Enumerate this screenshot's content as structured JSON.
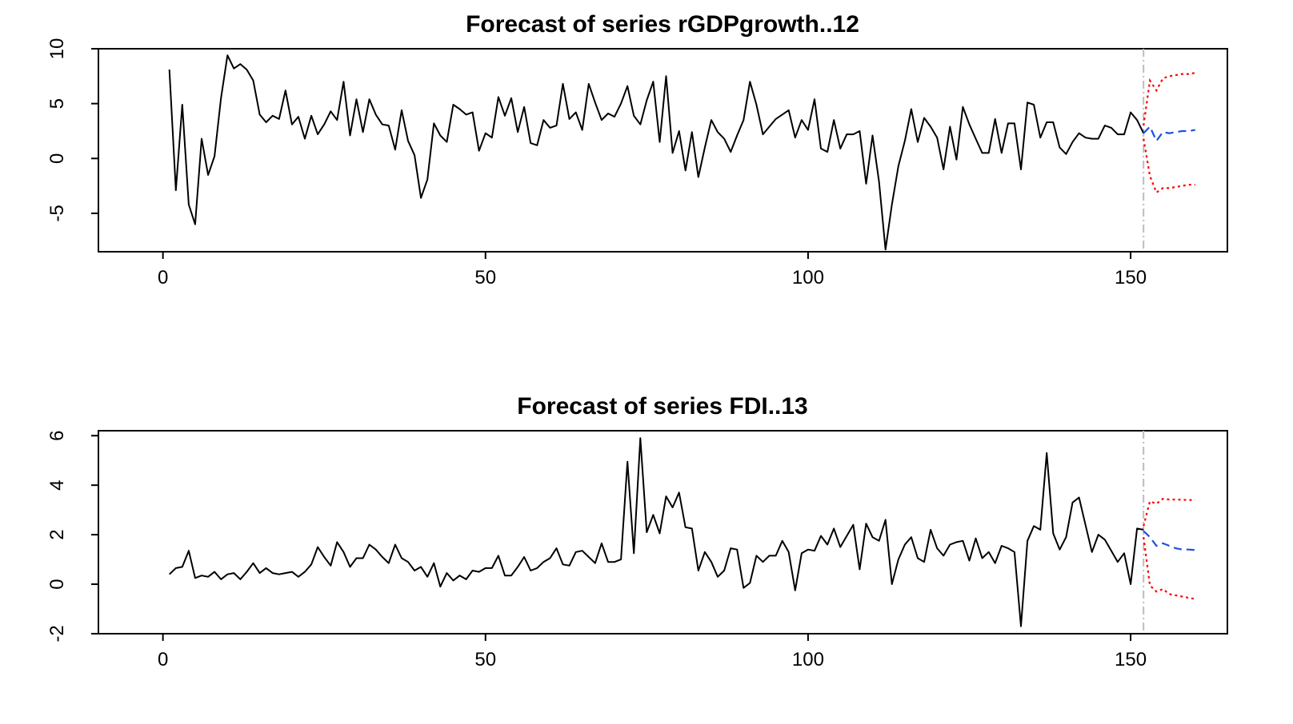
{
  "colors": {
    "history": "#000000",
    "forecast": "#1f4fe0",
    "confidence": "#ff0000",
    "cutoff": "#bdbdbd"
  },
  "chart_data": [
    {
      "type": "line",
      "title": "Forecast of series rGDPgrowth..12",
      "xlabel": "",
      "ylabel": "",
      "xlim": [
        -10,
        165
      ],
      "ylim": [
        -8.5,
        10
      ],
      "xticks": [
        0,
        50,
        100,
        150
      ],
      "xtick_labels": [
        "0",
        "50",
        "100",
        "150"
      ],
      "yticks": [
        -5,
        0,
        5,
        10
      ],
      "ytick_labels": [
        "-5",
        "0",
        "5",
        "10"
      ],
      "grid": false,
      "forecast_start": 152,
      "series": [
        {
          "role": "history",
          "x_start": 1,
          "values": [
            8.1,
            -2.9,
            4.9,
            -4.2,
            -6.0,
            1.8,
            -1.5,
            0.2,
            5.5,
            9.4,
            8.2,
            8.6,
            8.1,
            7.1,
            4.0,
            3.3,
            3.9,
            3.6,
            6.2,
            3.1,
            3.8,
            1.8,
            3.9,
            2.2,
            3.1,
            4.3,
            3.5,
            7.0,
            2.1,
            5.4,
            2.4,
            5.4,
            4.0,
            3.1,
            3.0,
            0.8,
            4.4,
            1.6,
            0.3,
            -3.6,
            -1.9,
            3.2,
            2.1,
            1.5,
            4.9,
            4.5,
            4.0,
            4.2,
            0.7,
            2.3,
            1.9,
            5.6,
            3.9,
            5.5,
            2.4,
            4.7,
            1.4,
            1.2,
            3.5,
            2.8,
            3.0,
            6.8,
            3.6,
            4.2,
            2.6,
            6.8,
            5.1,
            3.5,
            4.1,
            3.8,
            5.0,
            6.6,
            3.9,
            3.1,
            5.3,
            7.0,
            1.5,
            7.5,
            0.5,
            2.5,
            -1.1,
            2.4,
            -1.7,
            1.0,
            3.5,
            2.4,
            1.8,
            0.6,
            2.1,
            3.5,
            7.0,
            4.9,
            2.2,
            2.9,
            3.6,
            4.0,
            4.4,
            1.9,
            3.5,
            2.6,
            5.4,
            0.9,
            0.6,
            3.5,
            0.9,
            2.2,
            2.2,
            2.5,
            -2.3,
            2.1,
            -2.1,
            -8.3,
            -4.2,
            -0.7,
            1.6,
            4.5,
            1.5,
            3.7,
            2.9,
            1.9,
            -1.0,
            2.9,
            -0.1,
            4.7,
            3.1,
            1.8,
            0.5,
            0.5,
            3.6,
            0.5,
            3.2,
            3.2,
            -1.0,
            5.1,
            4.9,
            1.9,
            3.3,
            3.3,
            1.0,
            0.4,
            1.5,
            2.3,
            1.9,
            1.8,
            1.8,
            3.0,
            2.8,
            2.2,
            2.2,
            4.2,
            3.5,
            2.3
          ]
        },
        {
          "role": "forecast",
          "x": [
            152,
            153,
            154,
            155,
            156,
            157,
            158,
            159,
            160
          ],
          "values": [
            2.3,
            2.9,
            1.6,
            2.4,
            2.3,
            2.4,
            2.5,
            2.5,
            2.6
          ]
        },
        {
          "role": "upper",
          "x": [
            152,
            153,
            154,
            155,
            156,
            157,
            158,
            159,
            160
          ],
          "values": [
            3.0,
            7.1,
            6.2,
            7.3,
            7.5,
            7.6,
            7.7,
            7.7,
            7.8
          ]
        },
        {
          "role": "lower",
          "x": [
            152,
            153,
            154,
            155,
            156,
            157,
            158,
            159,
            160
          ],
          "values": [
            1.8,
            -1.6,
            -3.1,
            -2.7,
            -2.7,
            -2.6,
            -2.5,
            -2.4,
            -2.4
          ]
        }
      ]
    },
    {
      "type": "line",
      "title": "Forecast of series FDI..13",
      "xlabel": "",
      "ylabel": "",
      "xlim": [
        -10,
        165
      ],
      "ylim": [
        -2.0,
        6.2
      ],
      "xticks": [
        0,
        50,
        100,
        150
      ],
      "xtick_labels": [
        "0",
        "50",
        "100",
        "150"
      ],
      "yticks": [
        -2,
        0,
        2,
        4,
        6
      ],
      "ytick_labels": [
        "-2",
        "0",
        "2",
        "4",
        "6"
      ],
      "grid": false,
      "forecast_start": 152,
      "series": [
        {
          "role": "history",
          "x_start": 1,
          "values": [
            0.4,
            0.65,
            0.7,
            1.35,
            0.25,
            0.35,
            0.3,
            0.5,
            0.2,
            0.4,
            0.45,
            0.2,
            0.5,
            0.85,
            0.45,
            0.65,
            0.45,
            0.4,
            0.45,
            0.5,
            0.3,
            0.5,
            0.8,
            1.5,
            1.1,
            0.75,
            1.7,
            1.3,
            0.7,
            1.05,
            1.05,
            1.6,
            1.4,
            1.1,
            0.85,
            1.6,
            1.05,
            0.9,
            0.55,
            0.7,
            0.3,
            0.85,
            -0.1,
            0.45,
            0.15,
            0.35,
            0.2,
            0.55,
            0.5,
            0.65,
            0.65,
            1.15,
            0.35,
            0.35,
            0.7,
            1.1,
            0.55,
            0.65,
            0.9,
            1.05,
            1.45,
            0.8,
            0.75,
            1.3,
            1.35,
            1.1,
            0.85,
            1.65,
            0.9,
            0.9,
            1.0,
            4.95,
            1.25,
            5.9,
            2.1,
            2.8,
            2.05,
            3.55,
            3.1,
            3.7,
            2.3,
            2.25,
            0.55,
            1.3,
            0.9,
            0.3,
            0.55,
            1.45,
            1.4,
            -0.15,
            0.05,
            1.15,
            0.9,
            1.15,
            1.15,
            1.75,
            1.3,
            -0.25,
            1.25,
            1.4,
            1.35,
            1.95,
            1.6,
            2.25,
            1.5,
            1.95,
            2.4,
            0.6,
            2.45,
            1.9,
            1.75,
            2.6,
            0.0,
            1.0,
            1.6,
            1.9,
            1.05,
            0.9,
            2.2,
            1.45,
            1.15,
            1.6,
            1.7,
            1.75,
            0.95,
            1.85,
            1.05,
            1.3,
            0.85,
            1.55,
            1.45,
            1.3,
            -1.7,
            1.75,
            2.35,
            2.2,
            5.3,
            2.05,
            1.4,
            1.9,
            3.3,
            3.5,
            2.4,
            1.3,
            2.0,
            1.8,
            1.35,
            0.9,
            1.25,
            0.0,
            2.25,
            2.2
          ]
        },
        {
          "role": "forecast",
          "x": [
            152,
            153,
            154,
            155,
            156,
            157,
            158,
            159,
            160
          ],
          "values": [
            2.15,
            1.9,
            1.55,
            1.65,
            1.55,
            1.45,
            1.4,
            1.4,
            1.38
          ]
        },
        {
          "role": "upper",
          "x": [
            152,
            153,
            154,
            155,
            156,
            157,
            158,
            159,
            160
          ],
          "values": [
            2.35,
            3.35,
            3.25,
            3.45,
            3.42,
            3.42,
            3.41,
            3.4,
            3.4
          ]
        },
        {
          "role": "lower",
          "x": [
            152,
            153,
            154,
            155,
            156,
            157,
            158,
            159,
            160
          ],
          "values": [
            1.9,
            -0.05,
            -0.3,
            -0.2,
            -0.4,
            -0.45,
            -0.5,
            -0.55,
            -0.6
          ]
        }
      ]
    }
  ]
}
